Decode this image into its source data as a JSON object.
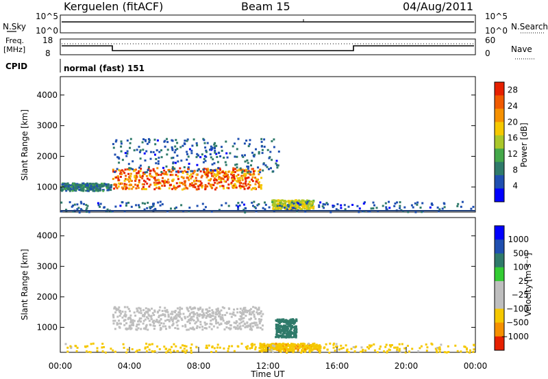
{
  "header": {
    "station": "Kerguelen (fitACF)",
    "beam": "Beam 15",
    "date": "04/Aug/2011"
  },
  "noise_panel": {
    "left_label": "N.Sky",
    "left_ticks": [
      "10^5",
      "10^0"
    ],
    "right_ticks": [
      "10^5",
      "10^0"
    ],
    "right_label": "N.Search"
  },
  "freq_panel": {
    "left_label_1": "Freq.",
    "left_label_2": "[MHz]",
    "left_ticks": [
      "18",
      "8"
    ],
    "right_ticks": [
      "60",
      "0"
    ],
    "right_label": "Nave"
  },
  "cpid_panel": {
    "label": "CPID",
    "value": "normal (fast) 151"
  },
  "colors": {
    "colorscale": [
      "#0000ff",
      "#1f4fb0",
      "#2f7a6a",
      "#45a84a",
      "#aac72a",
      "#f5c800",
      "#f59000",
      "#f05a00",
      "#e62000"
    ],
    "velocity_scale": [
      "#0000ff",
      "#1f4fb0",
      "#2f7a6a",
      "#33cc33",
      "#bebebe",
      "#bebebe",
      "#f5c800",
      "#f59000",
      "#e62000"
    ],
    "ground_scatter": "#bebebe"
  },
  "chart_data": [
    {
      "type": "heatmap",
      "title": "",
      "ylabel": "Slant Range [km]",
      "ylim": [
        180,
        4600
      ],
      "yticks": [
        "1000",
        "2000",
        "3000",
        "4000"
      ],
      "colorbar": {
        "label": "Power [dB]",
        "ticks": [
          "4",
          "8",
          "12",
          "16",
          "20",
          "24",
          "28"
        ],
        "range": [
          0,
          30
        ]
      },
      "regions": [
        {
          "t0": 3.0,
          "t1": 11.6,
          "r0": 950,
          "r1": 1650,
          "level": "high",
          "value": 24
        },
        {
          "t0": 3.0,
          "t1": 12.6,
          "r0": 1500,
          "r1": 2600,
          "level": "low",
          "value": 6
        },
        {
          "t0": 0.0,
          "t1": 2.9,
          "r0": 900,
          "r1": 1150,
          "level": "low",
          "value": 8
        },
        {
          "t0": 12.2,
          "t1": 14.6,
          "r0": 300,
          "r1": 600,
          "level": "mid",
          "value": 16
        },
        {
          "t0": 0.0,
          "t1": 24.0,
          "r0": 200,
          "r1": 550,
          "level": "scattered",
          "value": 6
        }
      ]
    },
    {
      "type": "heatmap",
      "title": "",
      "ylabel": "Slant Range [km]",
      "xlabel": "Time UT",
      "ylim": [
        180,
        4600
      ],
      "yticks": [
        "1000",
        "2000",
        "3000",
        "4000"
      ],
      "xticks": [
        "00:00",
        "04:00",
        "08:00",
        "12:00",
        "16:00",
        "20:00",
        "00:00"
      ],
      "xlim": [
        0,
        24
      ],
      "colorbar": {
        "label": "Velocity [m s⁻¹]",
        "ticks": [
          "1000",
          "500",
          "100",
          "25",
          "−25",
          "−100",
          "−500",
          "−1000"
        ]
      },
      "regions": [
        {
          "t0": 3.0,
          "t1": 11.7,
          "r0": 950,
          "r1": 1700,
          "kind": "ground",
          "value": 0
        },
        {
          "t0": 12.4,
          "t1": 13.6,
          "r0": 700,
          "r1": 1300,
          "kind": "ionospheric",
          "value": 150
        },
        {
          "t0": 11.5,
          "t1": 15.0,
          "r0": 250,
          "r1": 500,
          "kind": "ionospheric",
          "value": -80
        },
        {
          "t0": 0.0,
          "t1": 24.0,
          "r0": 200,
          "r1": 500,
          "kind": "scattered",
          "value": -50
        }
      ]
    }
  ]
}
